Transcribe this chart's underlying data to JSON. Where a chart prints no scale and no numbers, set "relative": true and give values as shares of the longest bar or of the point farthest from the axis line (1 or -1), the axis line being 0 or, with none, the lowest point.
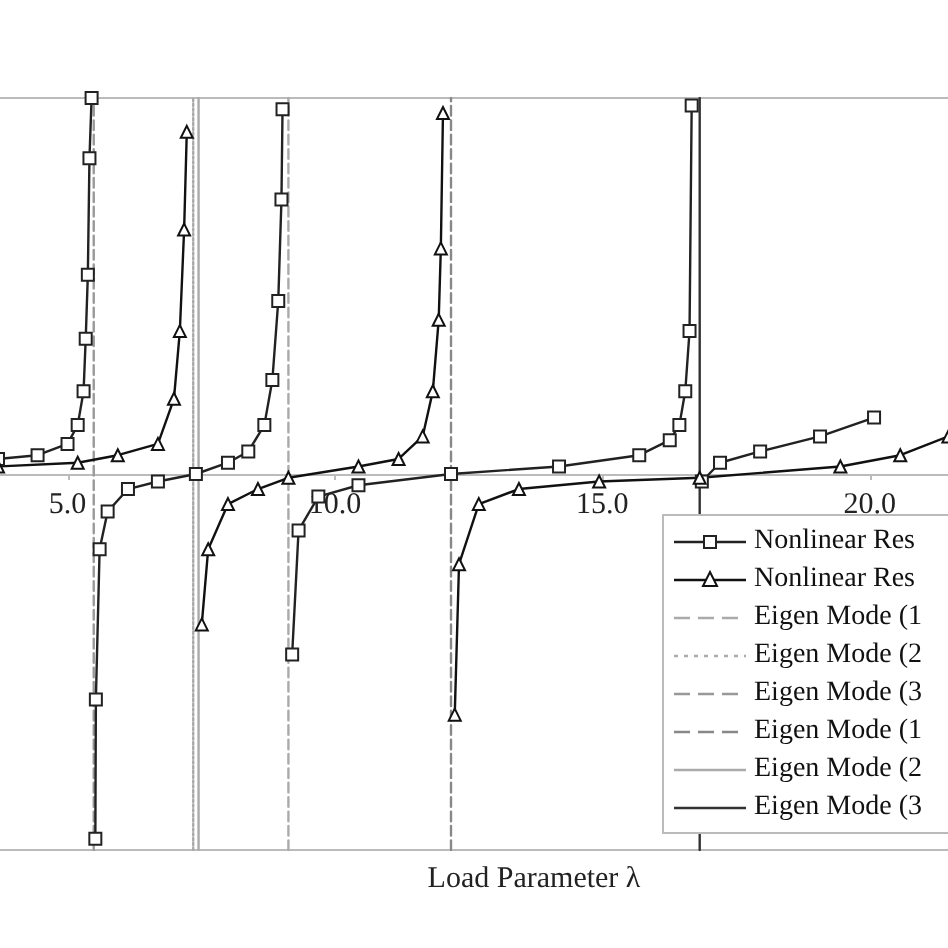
{
  "chart_data": {
    "type": "line",
    "relative": true,
    "xlabel": "Load Parameter λ",
    "xlim": [
      3.7,
      21.5
    ],
    "xticks": [
      {
        "value": 5,
        "label": "5.0"
      },
      {
        "value": 10,
        "label": "10.0"
      },
      {
        "value": 15,
        "label": "15.0"
      },
      {
        "value": 20,
        "label": "20.0"
      }
    ],
    "legend": "bottom right",
    "grid": false,
    "series": [
      {
        "name": "Nonlinear Res",
        "color": "#222222",
        "marker": "square",
        "line_style": "solid",
        "x": [
          3.7,
          4.44,
          5.0,
          5.19,
          5.3,
          5.34,
          5.38,
          5.41,
          5.45,
          5.49,
          5.52,
          5.53,
          5.6,
          5.75,
          6.13,
          6.69,
          7.4,
          8.0,
          8.38,
          8.68,
          8.83,
          8.94,
          9.0,
          9.02,
          9.1,
          9.2,
          9.32,
          9.69,
          10.44,
          12.17,
          14.19,
          15.69,
          16.26,
          16.44,
          16.55,
          16.63,
          16.67,
          16.8,
          16.86,
          17.2,
          17.95,
          19.07,
          20.08
        ],
        "values": [
          0.04,
          0.05,
          0.08,
          0.13,
          0.22,
          0.36,
          0.53,
          0.84,
          1.0,
          null,
          -0.97,
          -0.6,
          -0.2,
          -0.1,
          -0.04,
          -0.02,
          0,
          0.03,
          0.06,
          0.13,
          0.25,
          0.46,
          0.73,
          0.97,
          null,
          -0.48,
          -0.15,
          -0.06,
          -0.03,
          0,
          0.02,
          0.05,
          0.09,
          0.13,
          0.22,
          0.38,
          0.98,
          null,
          -0.02,
          0.03,
          0.06,
          0.1,
          0.15
        ]
      },
      {
        "name": "Nonlinear Res",
        "color": "#111111",
        "marker": "triangle",
        "line_style": "solid",
        "x": [
          3.7,
          5.19,
          5.94,
          6.69,
          6.99,
          7.1,
          7.18,
          7.23,
          7.4,
          7.51,
          7.63,
          8.0,
          8.56,
          9.13,
          10.44,
          11.19,
          11.64,
          11.83,
          11.94,
          11.98,
          12.02,
          12.1,
          12.24,
          12.32,
          12.69,
          13.44,
          14.94,
          16.82,
          19.45,
          20.57,
          21.47
        ],
        "values": [
          0.02,
          0.03,
          0.05,
          0.08,
          0.2,
          0.38,
          0.65,
          0.91,
          null,
          -0.4,
          -0.2,
          -0.08,
          -0.04,
          -0.01,
          0.02,
          0.04,
          0.1,
          0.22,
          0.41,
          0.6,
          0.96,
          null,
          -0.64,
          -0.24,
          -0.08,
          -0.04,
          -0.02,
          -0.01,
          0.02,
          0.05,
          0.1
        ]
      },
      {
        "name": "Eigen Mode (1",
        "color": "#aaaaaa",
        "marker": "none",
        "line_style": "dashed",
        "x": [
          9.13,
          9.13
        ],
        "values": [
          -1,
          1
        ]
      },
      {
        "name": "Eigen Mode (2",
        "color": "#aaaaaa",
        "marker": "none",
        "line_style": "dotted",
        "x": [
          7.35,
          7.35
        ],
        "values": [
          -1,
          1
        ]
      },
      {
        "name": "Eigen Mode (3",
        "color": "#999999",
        "marker": "none",
        "line_style": "dashed",
        "x": [
          5.49,
          5.49
        ],
        "values": [
          -1,
          1
        ]
      },
      {
        "name": "Eigen Mode (1",
        "color": "#888888",
        "marker": "none",
        "line_style": "dashed",
        "x": [
          12.17,
          12.17
        ],
        "values": [
          -1,
          1
        ]
      },
      {
        "name": "Eigen Mode (2",
        "color": "#aaaaaa",
        "marker": "none",
        "line_style": "solid",
        "x": [
          7.45,
          7.45
        ],
        "values": [
          -1,
          1
        ]
      },
      {
        "name": "Eigen Mode (3",
        "color": "#333333",
        "marker": "none",
        "line_style": "solid",
        "x": [
          16.82,
          16.82
        ],
        "values": [
          -1,
          1
        ]
      }
    ]
  }
}
